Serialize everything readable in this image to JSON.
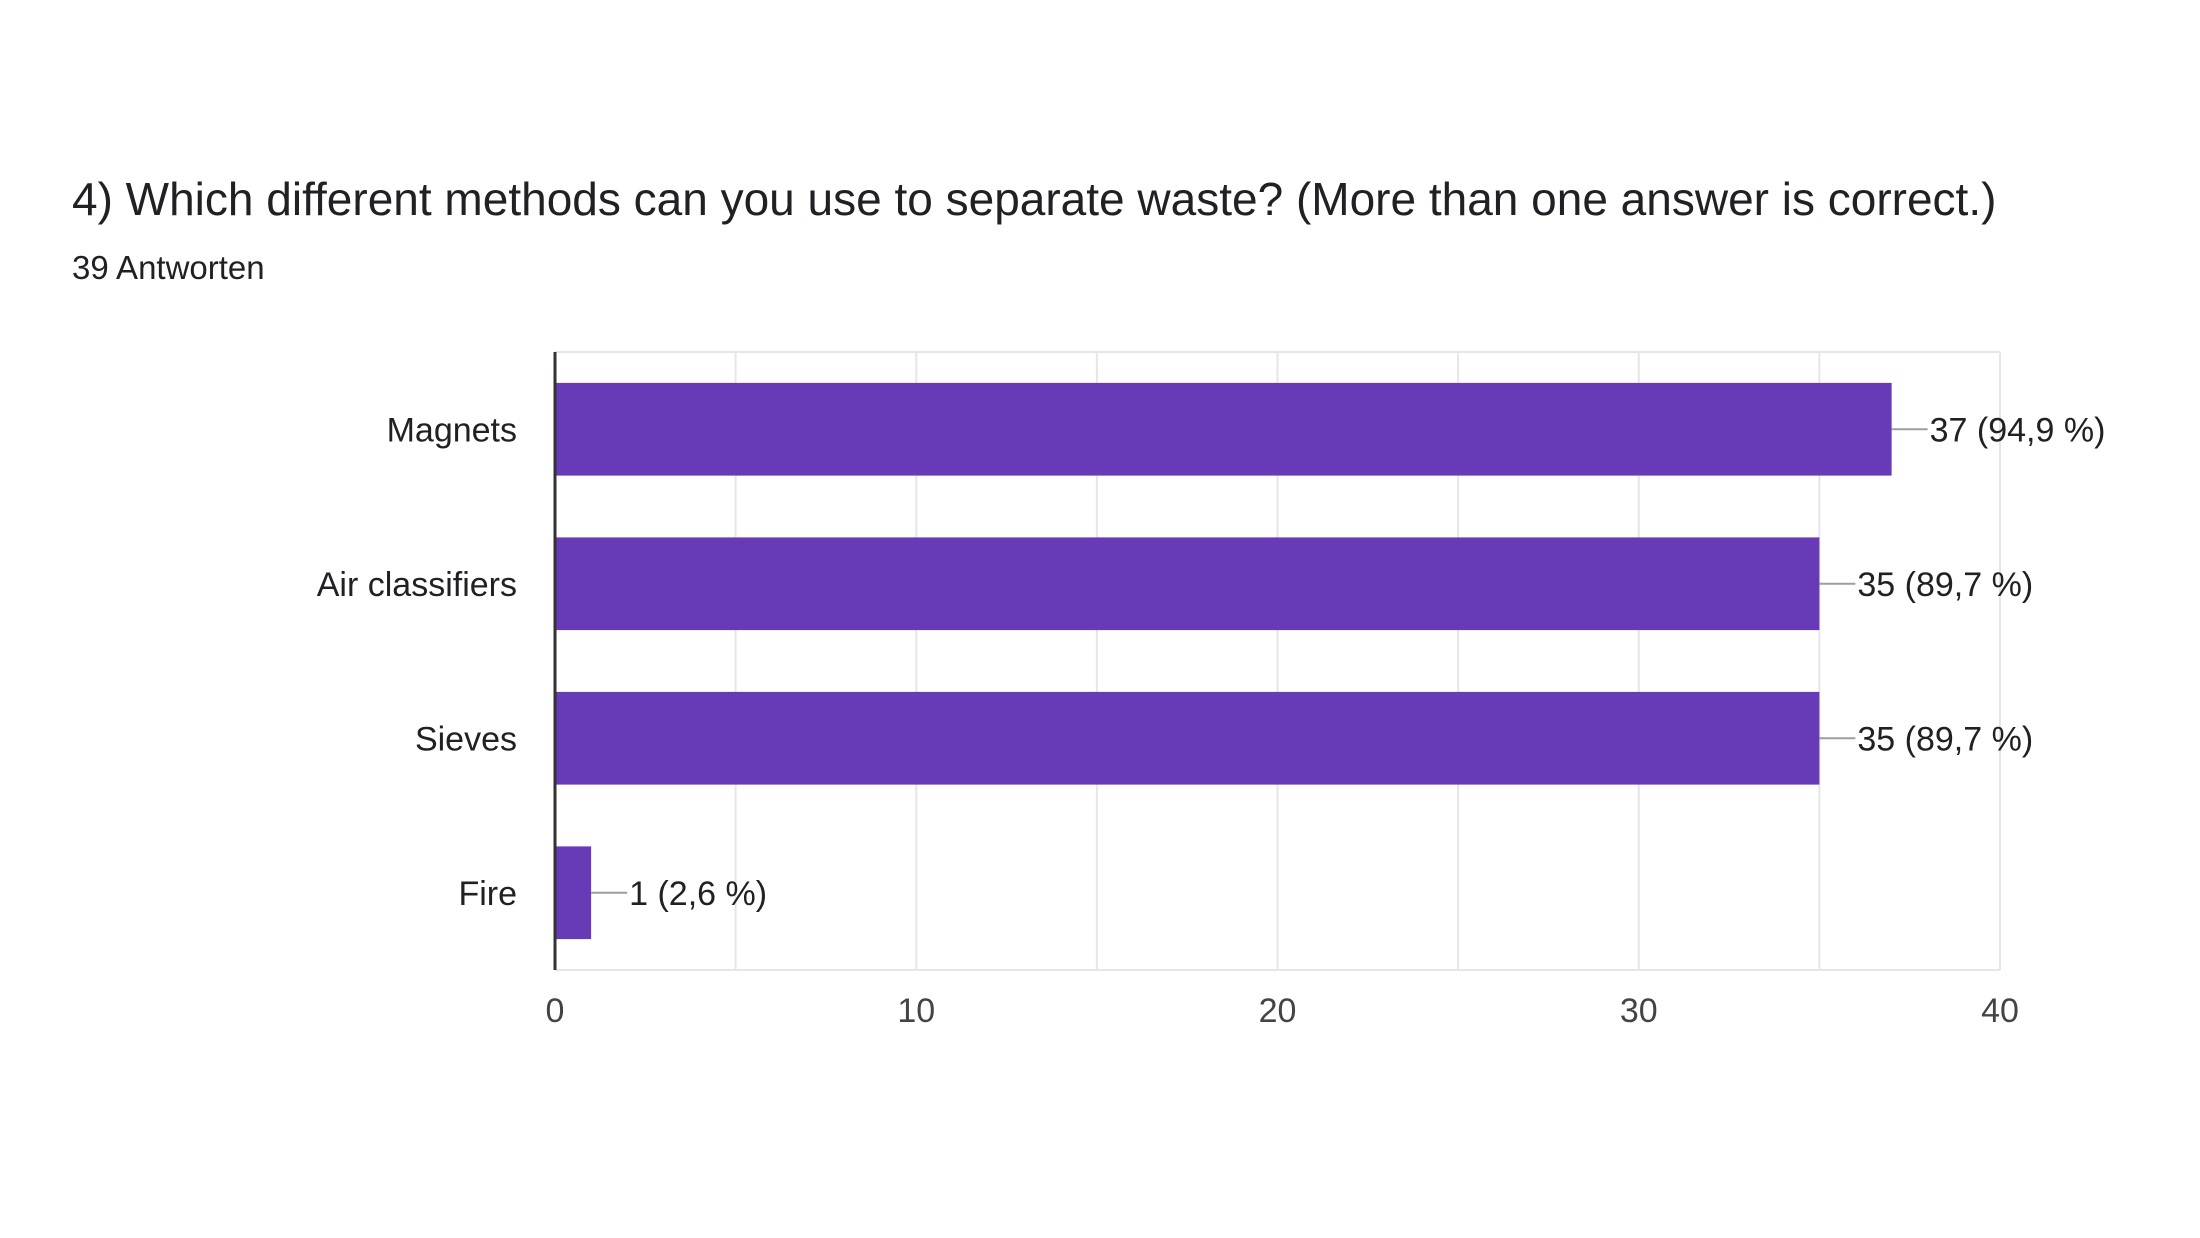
{
  "header": {
    "title": "4) Which different methods can you use to separate waste? (More than one answer is correct.)",
    "subtitle": "39 Antworten"
  },
  "colors": {
    "bar": "#673ab7",
    "grid": "#e6e6e6",
    "axis": "#333333",
    "leader": "#9e9e9e"
  },
  "chart_data": {
    "type": "bar",
    "orientation": "horizontal",
    "categories": [
      "Magnets",
      "Air classifiers",
      "Sieves",
      "Fire"
    ],
    "values": [
      37,
      35,
      35,
      1
    ],
    "data_labels": [
      "37 (94,9 %)",
      "35 (89,7 %)",
      "35 (89,7 %)",
      "1 (2,6 %)"
    ],
    "xlim": [
      0,
      40
    ],
    "xticks": [
      0,
      10,
      20,
      30,
      40
    ],
    "grid": true
  }
}
